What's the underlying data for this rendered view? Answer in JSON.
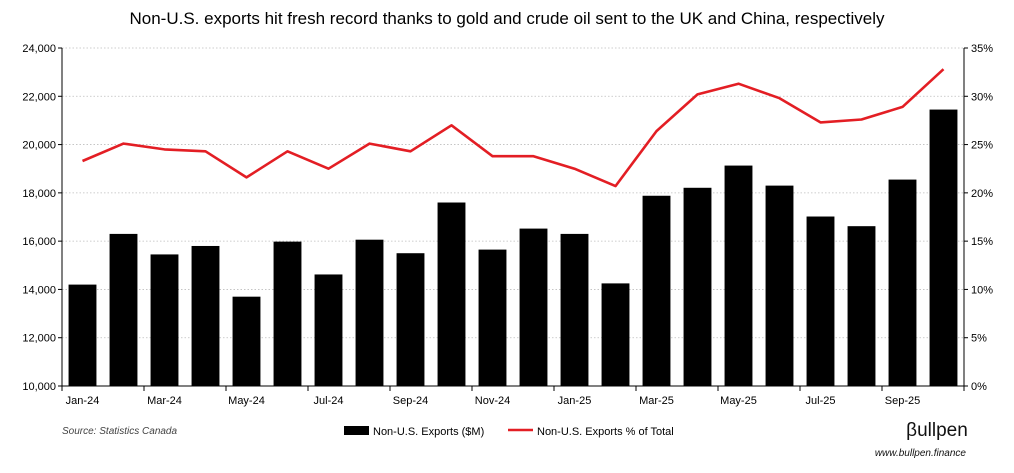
{
  "chart_data": {
    "type": "bar",
    "title": "Non-U.S. exports hit fresh record thanks to gold and crude oil sent to the UK and China, respectively",
    "categories": [
      "Jan-24",
      "Feb-24",
      "Mar-24",
      "Apr-24",
      "May-24",
      "Jun-24",
      "Jul-24",
      "Aug-24",
      "Sep-24",
      "Oct-24",
      "Nov-24",
      "Dec-24",
      "Jan-25",
      "Feb-25",
      "Mar-25",
      "Apr-25",
      "May-25",
      "Jun-25",
      "Jul-25",
      "Aug-25",
      "Sep-25",
      "Oct-25"
    ],
    "x_tick_labels": [
      "Jan-24",
      "Mar-24",
      "May-24",
      "Jul-24",
      "Sep-24",
      "Nov-24",
      "Jan-25",
      "Mar-25",
      "May-25",
      "Jul-25",
      "Sep-25"
    ],
    "series": [
      {
        "name": "Non-U.S. Exports ($M)",
        "type": "bar",
        "axis": "left",
        "color": "#000000",
        "values": [
          14200,
          16300,
          15450,
          15800,
          13700,
          15980,
          14620,
          16060,
          15500,
          17600,
          15650,
          16520,
          16300,
          14250,
          17880,
          18210,
          19130,
          18300,
          17020,
          16620,
          18550,
          21450
        ]
      },
      {
        "name": "Non-U.S. Exports % of Total",
        "type": "line",
        "axis": "right",
        "color": "#e31e24",
        "values": [
          23.3,
          25.1,
          24.5,
          24.3,
          21.6,
          24.3,
          22.5,
          25.1,
          24.3,
          27.0,
          23.8,
          23.8,
          22.5,
          20.7,
          26.4,
          30.2,
          31.3,
          29.8,
          27.3,
          27.6,
          28.9,
          32.8
        ]
      }
    ],
    "y_left": {
      "min": 10000,
      "max": 24000,
      "tick_labels": [
        "10,000",
        "12,000",
        "14,000",
        "16,000",
        "18,000",
        "20,000",
        "22,000",
        "24,000"
      ]
    },
    "y_right": {
      "min": 0,
      "max": 35,
      "tick_labels": [
        "0%",
        "5%",
        "10%",
        "15%",
        "20%",
        "25%",
        "30%",
        "35%"
      ]
    },
    "grid": "horizontal-dotted",
    "legend": {
      "position": "bottom-center"
    },
    "source": "Source: Statistics Canada",
    "brand": "βullpen",
    "website": "www.bullpen.finance"
  }
}
